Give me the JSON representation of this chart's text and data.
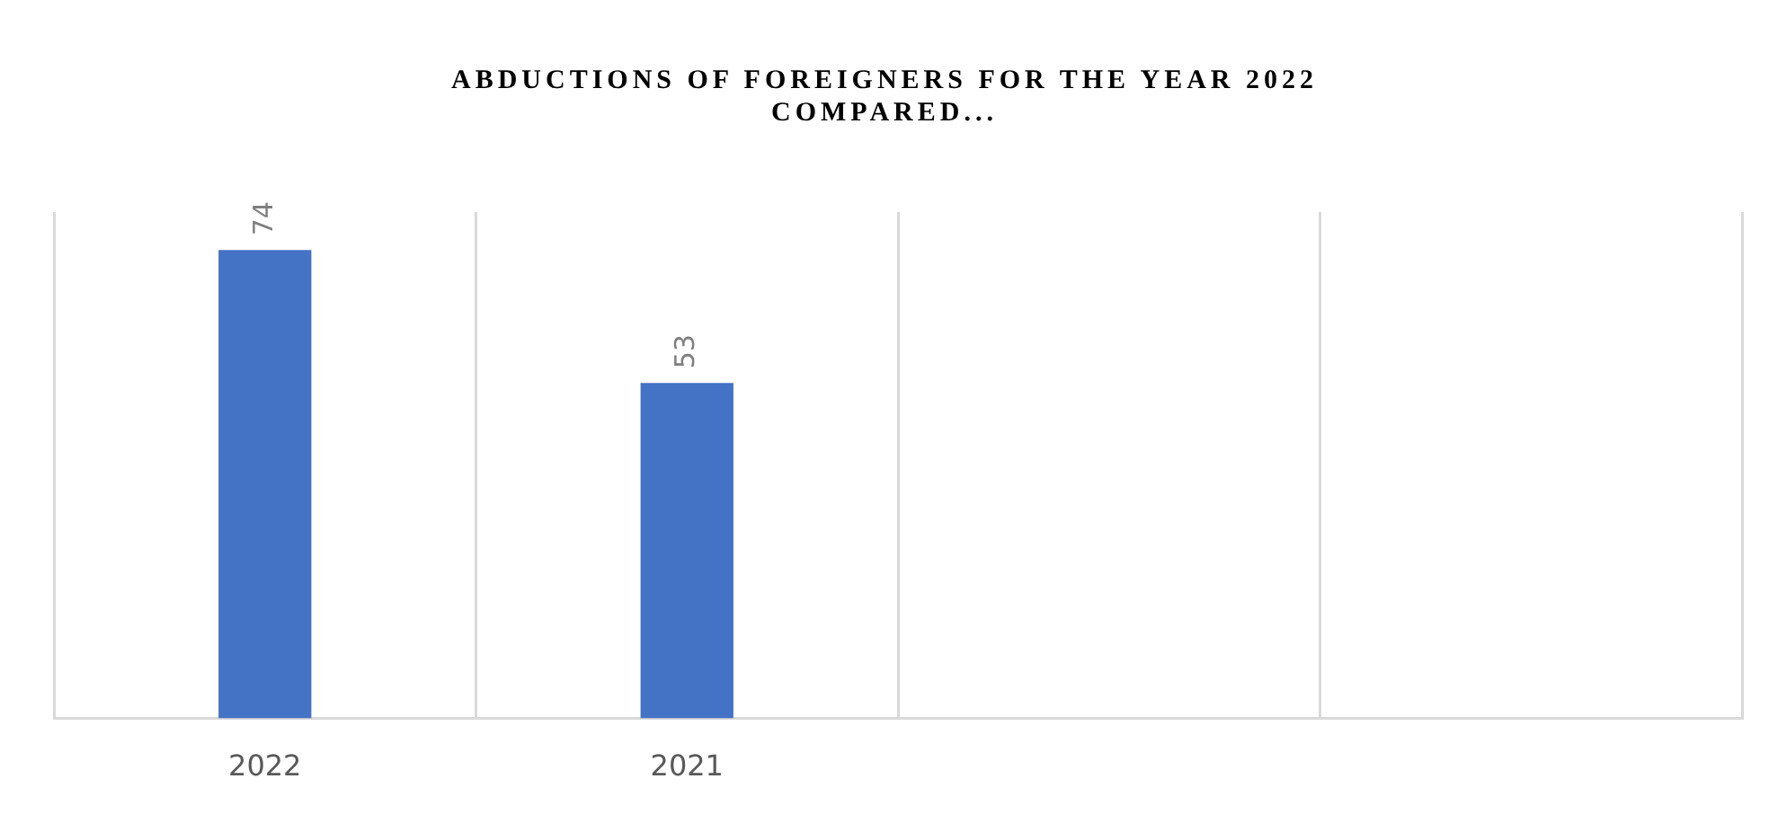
{
  "chart_data": {
    "type": "bar",
    "title": "ABDUCTIONS OF FOREIGNERS FOR THE YEAR 2022 COMPARED...",
    "categories": [
      "2022",
      "2021",
      null,
      null
    ],
    "values": [
      74,
      53,
      null,
      null
    ],
    "color": "#4472c4",
    "data_labels": true,
    "grid": "x",
    "tick_labels": "x"
  }
}
